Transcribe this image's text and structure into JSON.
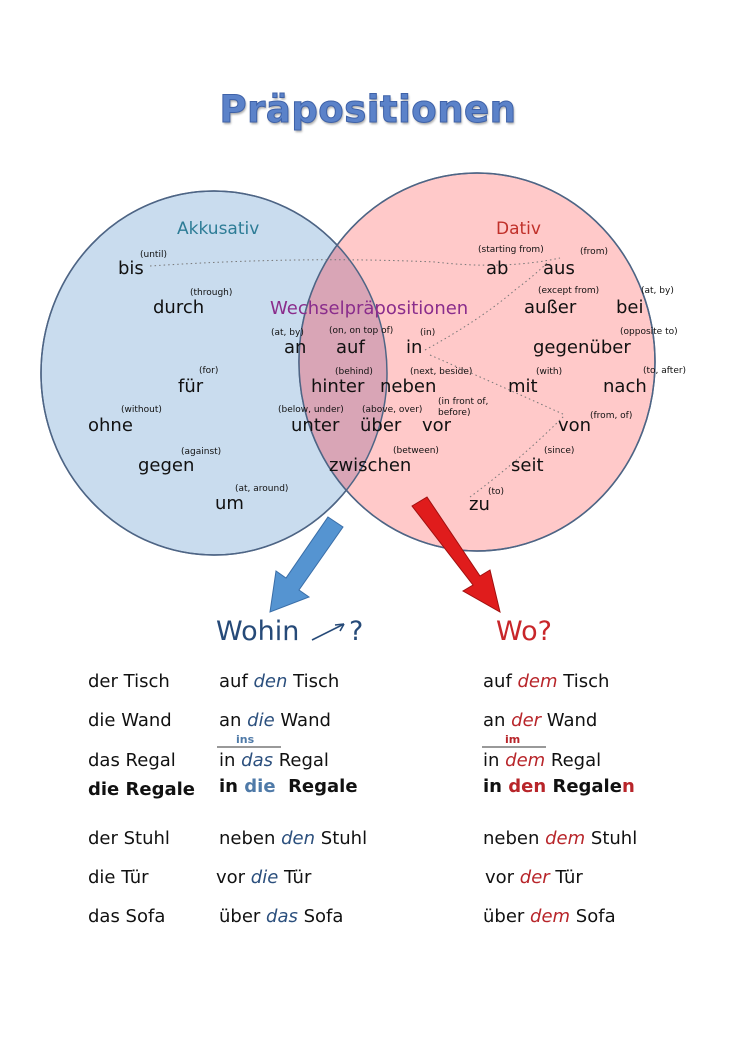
{
  "title": "Präpositionen",
  "colors": {
    "akkusativ_fill": "#c9dcee",
    "dativ_fill": "#ffc9c9",
    "overlap_fill": "#d9a5b6",
    "circle_stroke": "#4e6585",
    "akkusativ_text": "#2d7c96",
    "dativ_text": "#c0302a",
    "wechsel_text": "#8a2d8c",
    "wohin_text": "#264a78",
    "wo_text": "#c8262a",
    "blue_article": "#2b4f7d",
    "red_article": "#b8252a",
    "blue_arrow": "#5594d1",
    "red_arrow": "#e01c1c"
  },
  "venn": {
    "akkusativ": {
      "label": "Akkusativ",
      "words": [
        {
          "word": "bis",
          "translation": "(until)"
        },
        {
          "word": "durch",
          "translation": "(through)"
        },
        {
          "word": "für",
          "translation": "(for)"
        },
        {
          "word": "ohne",
          "translation": "(without)"
        },
        {
          "word": "gegen",
          "translation": "(against)"
        },
        {
          "word": "um",
          "translation": "(at, around)"
        }
      ]
    },
    "dativ": {
      "label": "Dativ",
      "words": [
        {
          "word": "ab",
          "translation": "(starting from)"
        },
        {
          "word": "aus",
          "translation": "(from)"
        },
        {
          "word": "außer",
          "translation": "(except from)"
        },
        {
          "word": "bei",
          "translation": "(at, by)"
        },
        {
          "word": "gegenüber",
          "translation": "(opposite to)"
        },
        {
          "word": "mit",
          "translation": "(with)"
        },
        {
          "word": "nach",
          "translation": "(to, after)"
        },
        {
          "word": "von",
          "translation": "(from, of)"
        },
        {
          "word": "seit",
          "translation": "(since)"
        },
        {
          "word": "zu",
          "translation": "(to)"
        }
      ]
    },
    "wechsel": {
      "label": "Wechselpräpositionen",
      "words": [
        {
          "word": "an",
          "translation": "(at, by)"
        },
        {
          "word": "auf",
          "translation": "(on, on top of)"
        },
        {
          "word": "in",
          "translation": "(in)"
        },
        {
          "word": "hinter",
          "translation": "(behind)"
        },
        {
          "word": "neben",
          "translation": "(next, beside)"
        },
        {
          "word": "unter",
          "translation": "(below, under)"
        },
        {
          "word": "über",
          "translation": "(above, over)"
        },
        {
          "word": "vor",
          "translation": "(in front of, before)"
        },
        {
          "word": "zwischen",
          "translation": "(between)"
        }
      ]
    }
  },
  "questions": {
    "wohin_word": "Wohin",
    "wohin_mark": "?",
    "wo": "Wo?"
  },
  "examples": [
    {
      "noun": "der Tisch",
      "acc": {
        "pre": "auf ",
        "art": "den",
        "post": " Tisch"
      },
      "dat": {
        "pre": "auf ",
        "art": "dem",
        "post": " Tisch"
      }
    },
    {
      "noun": "die Wand",
      "acc": {
        "pre": "an ",
        "art": "die",
        "post": " Wand"
      },
      "dat": {
        "pre": "an ",
        "art": "der",
        "post": " Wand"
      }
    },
    {
      "noun": "das Regal",
      "acc": {
        "pre": "in ",
        "art": "das",
        "post": " Regal",
        "contraction": "ins"
      },
      "dat": {
        "pre": "in ",
        "art": "dem",
        "post": " Regal",
        "contraction": "im"
      }
    },
    {
      "noun": "die Regale",
      "bold": true,
      "acc": {
        "pre": "in ",
        "art": "die",
        "post": "  Regale"
      },
      "dat": {
        "pre": "in ",
        "art": "den",
        "post": " Regale",
        "post_red": "n"
      }
    },
    {
      "noun": "der Stuhl",
      "acc": {
        "pre": "neben ",
        "art": "den",
        "post": " Stuhl"
      },
      "dat": {
        "pre": "neben ",
        "art": "dem",
        "post": " Stuhl"
      }
    },
    {
      "noun": "die Tür",
      "acc": {
        "pre": "vor ",
        "art": "die",
        "post": " Tür"
      },
      "dat": {
        "pre": "vor ",
        "art": "der",
        "post": " Tür"
      }
    },
    {
      "noun": "das Sofa",
      "acc": {
        "pre": "über ",
        "art": "das",
        "post": " Sofa"
      },
      "dat": {
        "pre": "über ",
        "art": "dem",
        "post": " Sofa"
      }
    }
  ]
}
